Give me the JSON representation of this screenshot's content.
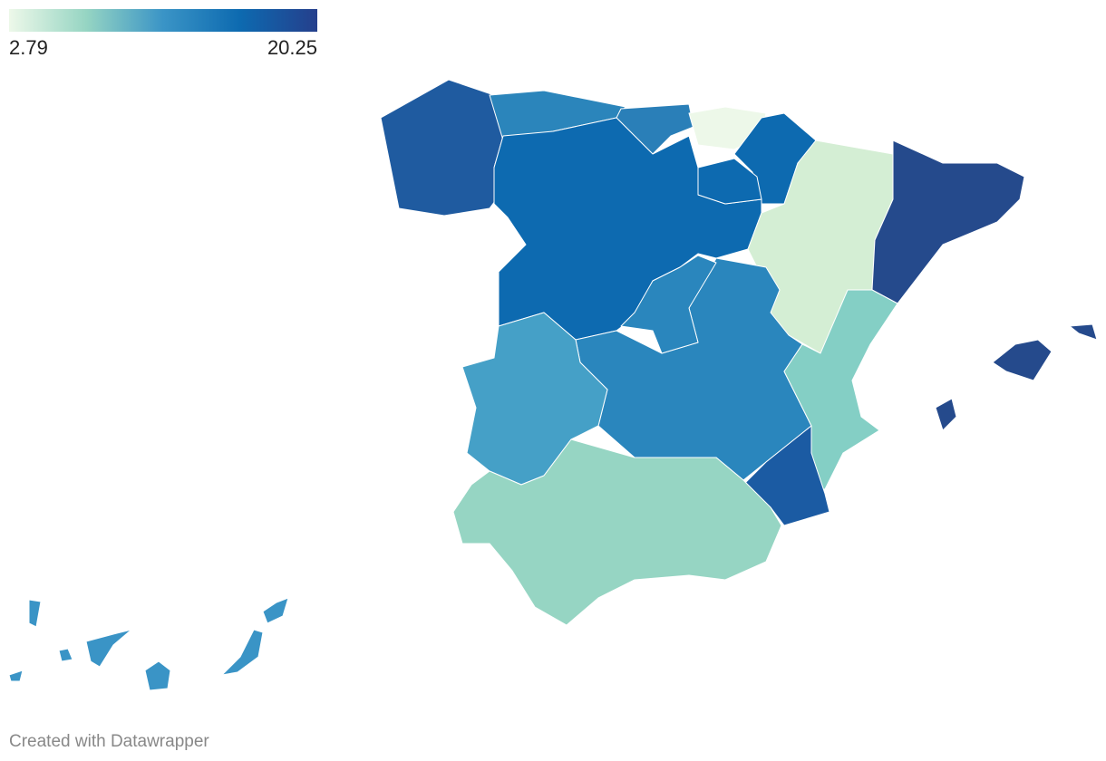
{
  "legend": {
    "min": 2.79,
    "max": 20.25,
    "colors": [
      "#edf8e9",
      "#96d5c3",
      "#3a94c6",
      "#0d6ab0",
      "#253f8c"
    ]
  },
  "credit": "Created with Datawrapper"
}
